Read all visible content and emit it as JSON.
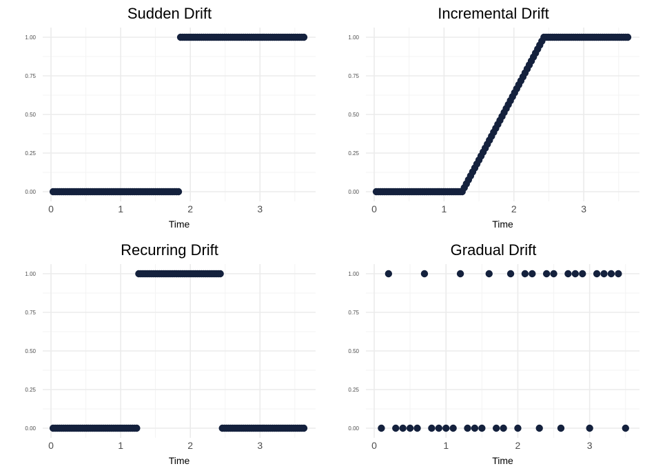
{
  "style": {
    "point_color": "#14213d",
    "major_grid_color": "#ebebeb",
    "minor_grid_color": "#f3f3f3",
    "tick_text_color": "#4d4d4d",
    "background": "#ffffff"
  },
  "chart_data": [
    {
      "type": "scatter",
      "title": "Sudden Drift",
      "xlabel": "Time",
      "ylabel": "",
      "xlim": [
        0,
        3.65
      ],
      "ylim": [
        0,
        1
      ],
      "xticks": [
        0,
        1,
        2,
        3
      ],
      "xtick_labels": [
        "0",
        "1",
        "2",
        "3"
      ],
      "yticks": [
        0,
        0.25,
        0.5,
        0.75,
        1
      ],
      "ytick_labels": [
        "0.00",
        "0.25",
        "0.50",
        "0.75",
        "1.00"
      ],
      "grid": true,
      "legend": "none",
      "series": [
        {
          "pattern": "step",
          "x_start": 0.03,
          "x_end": 3.63,
          "x_step": 0.03,
          "segments": [
            {
              "until": 1.83,
              "y": 0
            },
            {
              "until": 3.63,
              "y": 1
            }
          ]
        }
      ]
    },
    {
      "type": "scatter",
      "title": "Incremental Drift",
      "xlabel": "Time",
      "ylabel": "",
      "xlim": [
        0,
        3.65
      ],
      "ylim": [
        0,
        1
      ],
      "xticks": [
        0,
        1,
        2,
        3
      ],
      "xtick_labels": [
        "0",
        "1",
        "2",
        "3"
      ],
      "yticks": [
        0,
        0.25,
        0.5,
        0.75,
        1
      ],
      "ytick_labels": [
        "0.00",
        "0.25",
        "0.50",
        "0.75",
        "1.00"
      ],
      "grid": true,
      "legend": "none",
      "series": [
        {
          "pattern": "ramp",
          "x_start": 0.03,
          "x_end": 3.63,
          "x_step": 0.03,
          "ramp_start": 1.26,
          "ramp_end": 2.43,
          "y_before": 0,
          "y_after": 1
        }
      ]
    },
    {
      "type": "scatter",
      "title": "Recurring Drift",
      "xlabel": "Time",
      "ylabel": "",
      "xlim": [
        0,
        3.65
      ],
      "ylim": [
        0,
        1
      ],
      "xticks": [
        0,
        1,
        2,
        3
      ],
      "xtick_labels": [
        "0",
        "1",
        "2",
        "3"
      ],
      "yticks": [
        0,
        0.25,
        0.5,
        0.75,
        1
      ],
      "ytick_labels": [
        "0.00",
        "0.25",
        "0.50",
        "0.75",
        "1.00"
      ],
      "grid": true,
      "legend": "none",
      "series": [
        {
          "pattern": "step",
          "x_start": 0.03,
          "x_end": 3.63,
          "x_step": 0.03,
          "segments": [
            {
              "until": 1.23,
              "y": 0
            },
            {
              "until": 2.43,
              "y": 1
            },
            {
              "until": 3.63,
              "y": 0
            }
          ]
        }
      ]
    },
    {
      "type": "scatter",
      "title": "Gradual Drift",
      "xlabel": "Time",
      "ylabel": "",
      "xlim": [
        0,
        3.55
      ],
      "ylim": [
        0,
        1
      ],
      "xticks": [
        0,
        1,
        2,
        3
      ],
      "xtick_labels": [
        "0",
        "1",
        "2",
        "3"
      ],
      "yticks": [
        0,
        0.25,
        0.5,
        0.75,
        1
      ],
      "ytick_labels": [
        "0.00",
        "0.25",
        "0.50",
        "0.75",
        "1.00"
      ],
      "grid": true,
      "legend": "none",
      "series": [
        {
          "pattern": "points",
          "x": [
            0.1,
            0.2,
            0.3,
            0.4,
            0.5,
            0.6,
            0.7,
            0.8,
            0.9,
            1.0,
            1.1,
            1.2,
            1.3,
            1.4,
            1.5,
            1.6,
            1.7,
            1.8,
            1.9,
            2.0,
            2.1,
            2.2,
            2.3,
            2.4,
            2.5,
            2.6,
            2.7,
            2.8,
            2.9,
            3.0,
            3.1,
            3.2,
            3.3,
            3.4,
            3.5
          ],
          "y": [
            0,
            1,
            0,
            0,
            0,
            0,
            1,
            0,
            0,
            0,
            0,
            1,
            0,
            0,
            0,
            1,
            0,
            0,
            1,
            0,
            1,
            1,
            0,
            1,
            1,
            0,
            1,
            1,
            1,
            0,
            1,
            1,
            1,
            1,
            0
          ]
        }
      ]
    }
  ]
}
